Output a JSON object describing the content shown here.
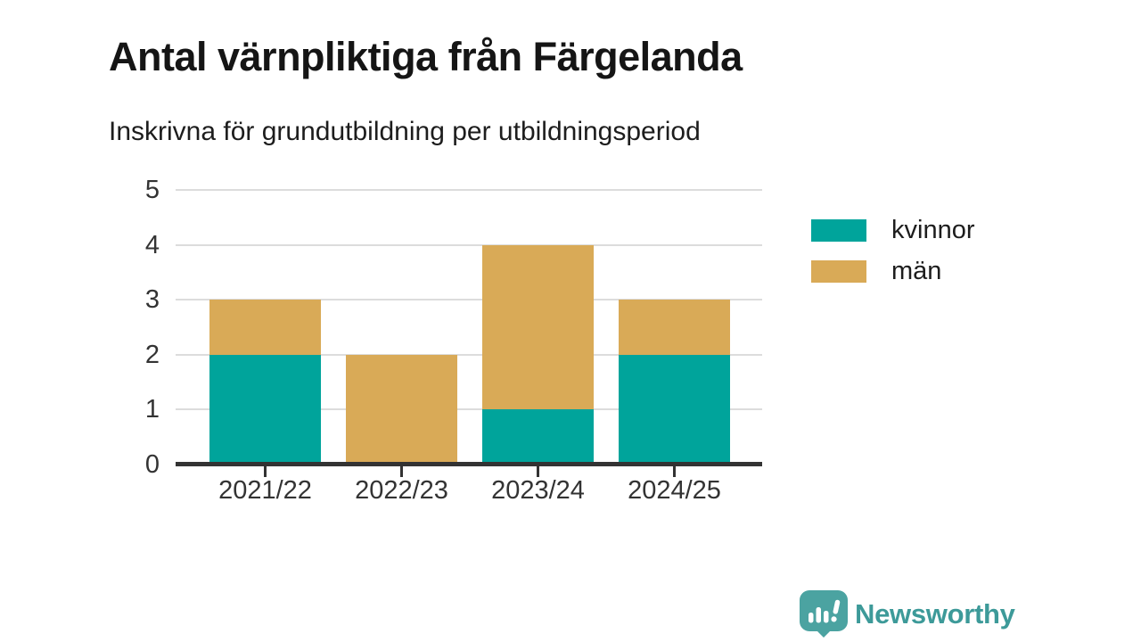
{
  "header": {
    "title": "Antal värnpliktiga från Färgelanda",
    "subtitle": "Inskrivna för grundutbildning per utbildningsperiod"
  },
  "chart_data": {
    "type": "bar",
    "stacked": true,
    "categories": [
      "2021/22",
      "2022/23",
      "2023/24",
      "2024/25"
    ],
    "series": [
      {
        "name": "kvinnor",
        "color": "#00A49B",
        "values": [
          2,
          0,
          1,
          2
        ]
      },
      {
        "name": "män",
        "color": "#D9AA57",
        "values": [
          1,
          2,
          3,
          1
        ]
      }
    ],
    "title": "Antal värnpliktiga från Färgelanda",
    "subtitle": "Inskrivna för grundutbildning per utbildningsperiod",
    "xlabel": "",
    "ylabel": "",
    "ylim": [
      0,
      5
    ],
    "yticks": [
      0,
      1,
      2,
      3,
      4,
      5
    ],
    "grid": true,
    "legend_position": "right"
  },
  "footer": {
    "brand": "Newsworthy",
    "brand_color": "#3D9A99",
    "logo_color": "#4BA3A1"
  }
}
